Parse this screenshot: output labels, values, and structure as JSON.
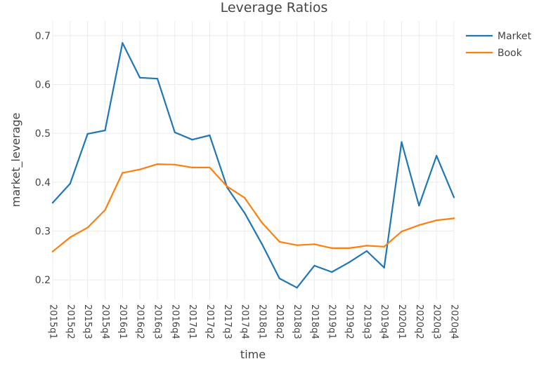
{
  "chart_data": {
    "type": "line",
    "title": "Leverage Ratios",
    "xlabel": "time",
    "ylabel": "market_leverage",
    "categories": [
      "2015q1",
      "2015q2",
      "2015q3",
      "2015q4",
      "2016q1",
      "2016q2",
      "2016q3",
      "2016q4",
      "2017q1",
      "2017q2",
      "2017q3",
      "2017q4",
      "2018q1",
      "2018q2",
      "2018q3",
      "2018q4",
      "2019q1",
      "2019q2",
      "2019q3",
      "2019q4",
      "2020q1",
      "2020q2",
      "2020q3",
      "2020q4"
    ],
    "series": [
      {
        "name": "Market",
        "color": "#1f77b4",
        "values": [
          0.358,
          0.397,
          0.499,
          0.506,
          0.685,
          0.614,
          0.612,
          0.502,
          0.487,
          0.496,
          0.389,
          0.337,
          0.273,
          0.203,
          0.184,
          0.229,
          0.216,
          0.236,
          0.259,
          0.225,
          0.482,
          0.352,
          0.454,
          0.369
        ]
      },
      {
        "name": "Book",
        "color": "#ff7f0e",
        "values": [
          0.258,
          0.287,
          0.307,
          0.343,
          0.419,
          0.426,
          0.437,
          0.436,
          0.43,
          0.43,
          0.391,
          0.368,
          0.317,
          0.278,
          0.271,
          0.273,
          0.265,
          0.265,
          0.27,
          0.268,
          0.299,
          0.312,
          0.322,
          0.326
        ]
      }
    ],
    "yticks": [
      0.2,
      0.3,
      0.4,
      0.5,
      0.6,
      0.7
    ],
    "ylim": [
      0.16,
      0.73
    ],
    "grid": true,
    "legend_position": "top-right"
  }
}
